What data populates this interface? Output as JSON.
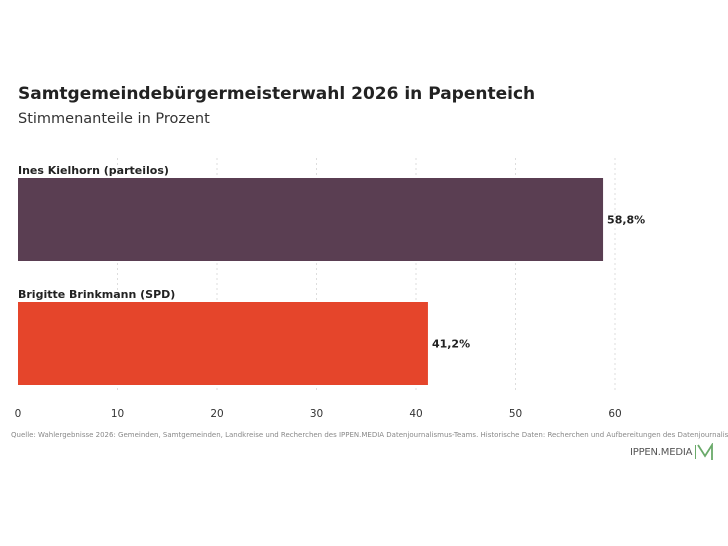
{
  "chart_data": {
    "type": "bar",
    "orientation": "horizontal",
    "title": "Samtgemeindebürgermeisterwahl 2026 in Papenteich",
    "subtitle": "Stimmenanteile in Prozent",
    "categories": [
      "Ines Kielhorn (parteilos)",
      "Brigitte Brinkmann (SPD)"
    ],
    "values": [
      58.8,
      41.2
    ],
    "value_labels": [
      "58,8%",
      "41,2%"
    ],
    "colors": [
      "#5a3e52",
      "#e5452b"
    ],
    "x_ticks": [
      0,
      10,
      20,
      30,
      40,
      50,
      60
    ],
    "xlim": [
      0,
      60
    ],
    "grid": true
  },
  "source": "Quelle: Wahlergebnisse 2026: Gemeinden, Samtgemeinden, Landkreise und Recherchen des IPPEN.MEDIA Datenjournalismus-Teams. Historische Daten: Recherchen und Aufbereitungen des Datenjournalismus-Teams",
  "brand": {
    "name": "IPPEN.MEDIA",
    "icon": "m-logo-icon",
    "color": "#6aaa6a"
  }
}
